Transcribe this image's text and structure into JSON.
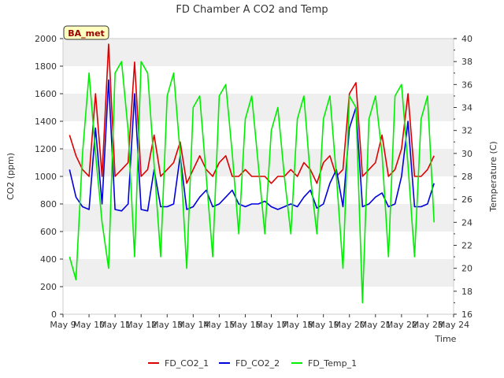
{
  "chart_data": {
    "type": "line",
    "title": "FD Chamber A CO2 and Temp",
    "xlabel": "Time",
    "ylabel_left": "CO2 (ppm)",
    "ylabel_right": "Temperature (C)",
    "station_label": "BA_met",
    "x_ticks": [
      "May 9",
      "May 10",
      "May 11",
      "May 12",
      "May 13",
      "May 14",
      "May 15",
      "May 16",
      "May 17",
      "May 18",
      "May 19",
      "May 20",
      "May 21",
      "May 22",
      "May 23",
      "May 24"
    ],
    "xlim": [
      "May 9",
      "May 24"
    ],
    "ylim_left": [
      0,
      2000
    ],
    "ylim_right": [
      16,
      40
    ],
    "yticks_left": [
      0,
      200,
      400,
      600,
      800,
      1000,
      1200,
      1400,
      1600,
      1800,
      2000
    ],
    "yticks_right": [
      16,
      18,
      20,
      22,
      24,
      26,
      28,
      30,
      32,
      34,
      36,
      38,
      40
    ],
    "grid": "horizontal bands",
    "legend_position": "bottom",
    "colors": {
      "co2_1": "#dd0000",
      "co2_2": "#0000dd",
      "temp_1": "#00ee00",
      "band": "#efefef",
      "label_bg": "#ffffc0",
      "label_text": "#990000"
    },
    "series": [
      {
        "name": "FD_CO2_1",
        "axis": "left",
        "x": [
          "2024-05-09T06:00",
          "2024-05-09T12:00",
          "2024-05-09T18:00",
          "2024-05-10T00:00",
          "2024-05-10T06:00",
          "2024-05-10T12:00",
          "2024-05-10T18:00",
          "2024-05-11T00:00",
          "2024-05-11T06:00",
          "2024-05-11T12:00",
          "2024-05-11T18:00",
          "2024-05-12T00:00",
          "2024-05-12T06:00",
          "2024-05-12T12:00",
          "2024-05-12T18:00",
          "2024-05-13T00:00",
          "2024-05-13T06:00",
          "2024-05-13T12:00",
          "2024-05-13T18:00",
          "2024-05-14T00:00",
          "2024-05-14T06:00",
          "2024-05-14T12:00",
          "2024-05-14T18:00",
          "2024-05-15T00:00",
          "2024-05-15T06:00",
          "2024-05-15T12:00",
          "2024-05-15T18:00",
          "2024-05-16T00:00",
          "2024-05-16T06:00",
          "2024-05-16T12:00",
          "2024-05-16T18:00",
          "2024-05-17T00:00",
          "2024-05-17T06:00",
          "2024-05-17T12:00",
          "2024-05-17T18:00",
          "2024-05-18T00:00",
          "2024-05-18T06:00",
          "2024-05-18T12:00",
          "2024-05-18T18:00",
          "2024-05-19T00:00",
          "2024-05-19T06:00",
          "2024-05-19T12:00",
          "2024-05-19T18:00",
          "2024-05-20T00:00",
          "2024-05-20T06:00",
          "2024-05-20T12:00",
          "2024-05-20T18:00",
          "2024-05-21T00:00",
          "2024-05-21T06:00",
          "2024-05-21T12:00",
          "2024-05-21T18:00",
          "2024-05-22T00:00",
          "2024-05-22T06:00",
          "2024-05-22T12:00",
          "2024-05-22T18:00",
          "2024-05-23T00:00",
          "2024-05-23T06:00"
        ],
        "values": [
          1300,
          1150,
          1050,
          1000,
          1600,
          1000,
          1960,
          1000,
          1050,
          1100,
          1830,
          1000,
          1050,
          1300,
          1000,
          1050,
          1100,
          1250,
          950,
          1050,
          1150,
          1050,
          1000,
          1100,
          1150,
          1000,
          1000,
          1050,
          1000,
          1000,
          1000,
          950,
          1000,
          1000,
          1050,
          1000,
          1100,
          1050,
          950,
          1100,
          1150,
          1000,
          1050,
          1600,
          1680,
          1000,
          1050,
          1100,
          1300,
          1000,
          1050,
          1200,
          1600,
          1000,
          1000,
          1050,
          1150
        ]
      },
      {
        "name": "FD_CO2_2",
        "axis": "left",
        "x": [
          "2024-05-09T06:00",
          "2024-05-09T12:00",
          "2024-05-09T18:00",
          "2024-05-10T00:00",
          "2024-05-10T06:00",
          "2024-05-10T12:00",
          "2024-05-10T18:00",
          "2024-05-11T00:00",
          "2024-05-11T06:00",
          "2024-05-11T12:00",
          "2024-05-11T18:00",
          "2024-05-12T00:00",
          "2024-05-12T06:00",
          "2024-05-12T12:00",
          "2024-05-12T18:00",
          "2024-05-13T00:00",
          "2024-05-13T06:00",
          "2024-05-13T12:00",
          "2024-05-13T18:00",
          "2024-05-14T00:00",
          "2024-05-14T06:00",
          "2024-05-14T12:00",
          "2024-05-14T18:00",
          "2024-05-15T00:00",
          "2024-05-15T06:00",
          "2024-05-15T12:00",
          "2024-05-15T18:00",
          "2024-05-16T00:00",
          "2024-05-16T06:00",
          "2024-05-16T12:00",
          "2024-05-16T18:00",
          "2024-05-17T00:00",
          "2024-05-17T06:00",
          "2024-05-17T12:00",
          "2024-05-17T18:00",
          "2024-05-18T00:00",
          "2024-05-18T06:00",
          "2024-05-18T12:00",
          "2024-05-18T18:00",
          "2024-05-19T00:00",
          "2024-05-19T06:00",
          "2024-05-19T12:00",
          "2024-05-19T18:00",
          "2024-05-20T00:00",
          "2024-05-20T06:00",
          "2024-05-20T12:00",
          "2024-05-20T18:00",
          "2024-05-21T00:00",
          "2024-05-21T06:00",
          "2024-05-21T12:00",
          "2024-05-21T18:00",
          "2024-05-22T00:00",
          "2024-05-22T06:00",
          "2024-05-22T12:00",
          "2024-05-22T18:00",
          "2024-05-23T00:00",
          "2024-05-23T06:00"
        ],
        "values": [
          1050,
          850,
          780,
          760,
          1350,
          800,
          1700,
          760,
          750,
          800,
          1600,
          760,
          750,
          1050,
          780,
          780,
          800,
          1150,
          760,
          780,
          850,
          900,
          780,
          800,
          850,
          900,
          800,
          780,
          800,
          800,
          820,
          780,
          760,
          780,
          800,
          780,
          850,
          900,
          770,
          800,
          950,
          1050,
          780,
          1350,
          1500,
          780,
          800,
          850,
          880,
          780,
          800,
          1000,
          1400,
          780,
          780,
          800,
          950
        ]
      },
      {
        "name": "FD_Temp_1",
        "axis": "right",
        "x": [
          "2024-05-09T06:00",
          "2024-05-09T12:00",
          "2024-05-09T18:00",
          "2024-05-10T00:00",
          "2024-05-10T06:00",
          "2024-05-10T12:00",
          "2024-05-10T18:00",
          "2024-05-11T00:00",
          "2024-05-11T06:00",
          "2024-05-11T12:00",
          "2024-05-11T18:00",
          "2024-05-12T00:00",
          "2024-05-12T06:00",
          "2024-05-12T12:00",
          "2024-05-12T18:00",
          "2024-05-13T00:00",
          "2024-05-13T06:00",
          "2024-05-13T12:00",
          "2024-05-13T18:00",
          "2024-05-14T00:00",
          "2024-05-14T06:00",
          "2024-05-14T12:00",
          "2024-05-14T18:00",
          "2024-05-15T00:00",
          "2024-05-15T06:00",
          "2024-05-15T12:00",
          "2024-05-15T18:00",
          "2024-05-16T00:00",
          "2024-05-16T06:00",
          "2024-05-16T12:00",
          "2024-05-16T18:00",
          "2024-05-17T00:00",
          "2024-05-17T06:00",
          "2024-05-17T12:00",
          "2024-05-17T18:00",
          "2024-05-18T00:00",
          "2024-05-18T06:00",
          "2024-05-18T12:00",
          "2024-05-18T18:00",
          "2024-05-19T00:00",
          "2024-05-19T06:00",
          "2024-05-19T12:00",
          "2024-05-19T18:00",
          "2024-05-20T00:00",
          "2024-05-20T06:00",
          "2024-05-20T12:00",
          "2024-05-20T18:00",
          "2024-05-21T00:00",
          "2024-05-21T06:00",
          "2024-05-21T12:00",
          "2024-05-21T18:00",
          "2024-05-22T00:00",
          "2024-05-22T06:00",
          "2024-05-22T12:00",
          "2024-05-22T18:00",
          "2024-05-23T00:00",
          "2024-05-23T06:00"
        ],
        "values": [
          21,
          19,
          30,
          37,
          30,
          24,
          20,
          37,
          38,
          32,
          21,
          38,
          37,
          29,
          21,
          35,
          37,
          30,
          20,
          34,
          35,
          28,
          21,
          35,
          36,
          30,
          23,
          33,
          35,
          29,
          23,
          32,
          34,
          28,
          23,
          33,
          35,
          28,
          23,
          33,
          35,
          28,
          20,
          35,
          34,
          17,
          33,
          35,
          30,
          21,
          35,
          36,
          29,
          21,
          33,
          35,
          24
        ]
      }
    ]
  }
}
